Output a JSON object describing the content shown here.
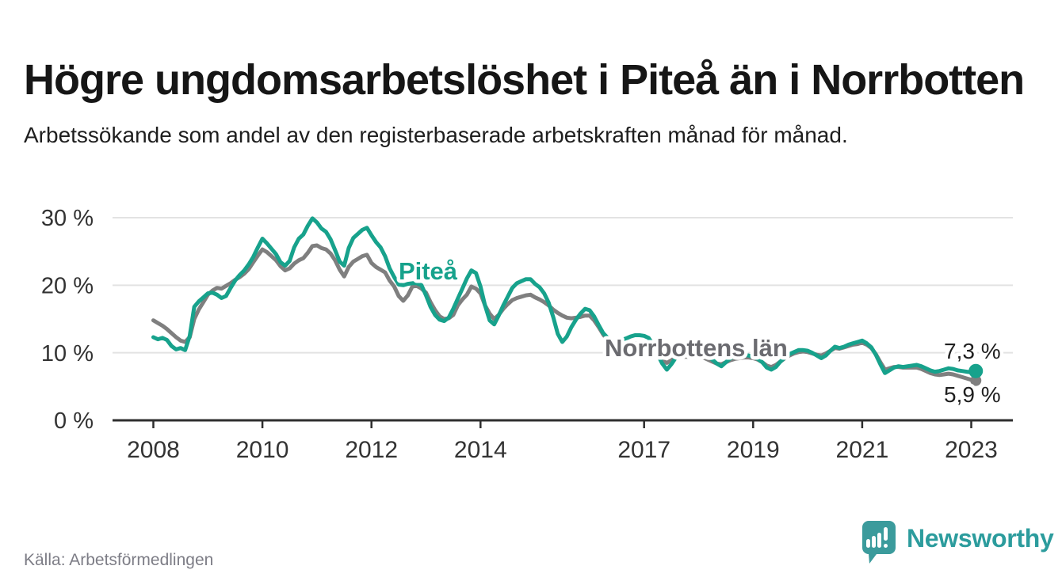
{
  "title": "Högre ungdomsarbetslöshet i Piteå än i Norrbotten",
  "subtitle": "Arbetssökande som andel av den registerbaserade arbetskraften månad för månad.",
  "source": "Källa: Arbetsförmedlingen",
  "logo": {
    "name": "Newsworthy",
    "color": "#2c9c9d",
    "icon": "newsworthy-speech-bubble-bar-chart"
  },
  "chart_data": {
    "type": "line",
    "unit": "%",
    "frequency": "monthly",
    "period_start": "2008-01",
    "period_end": "2023-02",
    "grid": "horizontal",
    "ylim": [
      0,
      32
    ],
    "y_ticks": [
      {
        "label": "0 %",
        "value": 0
      },
      {
        "label": "10 %",
        "value": 10
      },
      {
        "label": "20 %",
        "value": 20
      },
      {
        "label": "30 %",
        "value": 30
      }
    ],
    "x_ticks": [
      {
        "label": "2008",
        "month_index": 0
      },
      {
        "label": "2010",
        "month_index": 24
      },
      {
        "label": "2012",
        "month_index": 48
      },
      {
        "label": "2014",
        "month_index": 72
      },
      {
        "label": "2017",
        "month_index": 108
      },
      {
        "label": "2019",
        "month_index": 132
      },
      {
        "label": "2021",
        "month_index": 156
      },
      {
        "label": "2023",
        "month_index": 180
      }
    ],
    "series": [
      {
        "name": "Piteå",
        "annotation": "Piteå",
        "end_label": "7,3 %",
        "end_value": 7.3,
        "color": "#17a28c",
        "values": [
          12.3,
          12.0,
          12.2,
          11.9,
          11.0,
          10.5,
          10.7,
          10.4,
          12.5,
          16.8,
          17.6,
          18.2,
          18.8,
          18.9,
          18.6,
          18.1,
          18.4,
          19.6,
          20.7,
          21.5,
          22.2,
          23.1,
          24.2,
          25.6,
          26.9,
          26.2,
          25.4,
          24.6,
          23.4,
          22.9,
          23.6,
          25.6,
          26.9,
          27.5,
          28.8,
          29.9,
          29.3,
          28.4,
          27.9,
          26.8,
          25.2,
          23.5,
          22.9,
          25.5,
          27.0,
          27.6,
          28.2,
          28.5,
          27.4,
          26.4,
          25.6,
          24.3,
          22.5,
          21.2,
          20.1,
          20.0,
          20.2,
          20.3,
          20.3,
          20.0,
          18.5,
          16.8,
          15.6,
          14.9,
          14.7,
          15.2,
          16.5,
          18.0,
          19.5,
          21.0,
          22.2,
          21.8,
          19.8,
          17.0,
          14.8,
          14.2,
          15.5,
          17.0,
          18.3,
          19.6,
          20.3,
          20.6,
          20.9,
          20.9,
          20.2,
          19.7,
          18.8,
          17.4,
          15.3,
          12.8,
          11.6,
          12.4,
          13.8,
          14.9,
          15.8,
          16.5,
          16.3,
          15.4,
          14.1,
          12.9,
          12.2,
          11.8,
          11.6,
          11.9,
          12.1,
          12.4,
          12.6,
          12.6,
          12.5,
          12.2,
          11.2,
          9.7,
          8.4,
          7.5,
          8.3,
          9.3,
          9.8,
          9.9,
          10.0,
          10.1,
          10.2,
          10.0,
          9.6,
          9.0,
          8.4,
          8.0,
          8.6,
          9.2,
          9.5,
          9.6,
          9.7,
          9.6,
          9.4,
          9.1,
          8.6,
          7.8,
          7.5,
          7.9,
          8.7,
          9.3,
          9.8,
          10.1,
          10.4,
          10.4,
          10.3,
          10.0,
          9.6,
          9.2,
          9.6,
          10.3,
          10.9,
          10.7,
          10.9,
          11.2,
          11.4,
          11.6,
          11.8,
          11.4,
          10.8,
          9.7,
          8.3,
          7.0,
          7.4,
          7.8,
          8.0,
          7.9,
          8.0,
          8.1,
          8.2,
          8.0,
          7.7,
          7.4,
          7.2,
          7.3,
          7.5,
          7.7,
          7.6,
          7.4,
          7.3,
          7.2,
          7.1,
          7.3
        ]
      },
      {
        "name": "Norrbottens län",
        "annotation": "Norrbottens län",
        "end_label": "5,9 %",
        "end_value": 5.9,
        "color": "#7f7f7f",
        "values": [
          14.8,
          14.4,
          14.0,
          13.5,
          12.9,
          12.3,
          11.8,
          11.6,
          12.3,
          15.0,
          16.4,
          17.5,
          18.6,
          19.2,
          19.6,
          19.5,
          19.9,
          20.3,
          20.8,
          21.2,
          21.7,
          22.4,
          23.4,
          24.4,
          25.3,
          24.9,
          24.3,
          23.7,
          22.8,
          22.2,
          22.5,
          23.2,
          23.7,
          24.0,
          24.8,
          25.8,
          25.9,
          25.5,
          25.3,
          24.7,
          23.7,
          22.3,
          21.3,
          22.7,
          23.5,
          23.9,
          24.3,
          24.5,
          23.3,
          22.7,
          22.3,
          21.9,
          20.7,
          19.8,
          18.4,
          17.7,
          18.5,
          19.8,
          19.9,
          19.5,
          18.9,
          17.5,
          16.3,
          15.4,
          15.0,
          15.1,
          15.6,
          17.0,
          17.9,
          18.6,
          19.8,
          19.5,
          18.8,
          17.0,
          15.8,
          15.0,
          15.6,
          16.5,
          17.2,
          17.8,
          18.1,
          18.3,
          18.5,
          18.6,
          18.2,
          17.9,
          17.5,
          17.0,
          16.4,
          15.9,
          15.5,
          15.2,
          15.1,
          15.2,
          15.3,
          15.5,
          15.5,
          14.8,
          13.8,
          12.7,
          11.9,
          11.4,
          11.0,
          10.9,
          11.0,
          11.2,
          11.4,
          11.4,
          11.3,
          11.0,
          10.4,
          9.6,
          8.9,
          8.5,
          8.9,
          9.3,
          9.4,
          9.4,
          9.4,
          9.4,
          9.4,
          9.3,
          9.0,
          8.7,
          8.4,
          8.3,
          8.6,
          8.9,
          9.1,
          9.2,
          9.3,
          9.3,
          9.2,
          9.0,
          8.6,
          8.1,
          7.9,
          8.2,
          8.7,
          9.2,
          9.6,
          9.9,
          10.1,
          10.2,
          10.1,
          9.9,
          9.7,
          9.6,
          9.9,
          10.3,
          10.7,
          10.6,
          10.8,
          11.0,
          11.2,
          11.3,
          11.5,
          11.2,
          10.7,
          9.8,
          8.6,
          7.5,
          7.7,
          7.9,
          7.9,
          7.8,
          7.8,
          7.8,
          7.8,
          7.6,
          7.3,
          7.0,
          6.8,
          6.7,
          6.8,
          6.9,
          6.8,
          6.6,
          6.4,
          6.2,
          6.0,
          5.9
        ]
      }
    ],
    "colors": {
      "axis": "#2e2e2e",
      "grid": "#e3e3e3",
      "tick_label": "#333333",
      "end_label": "#1f1f1f",
      "norrbotten_label": "#6b6b70"
    }
  }
}
